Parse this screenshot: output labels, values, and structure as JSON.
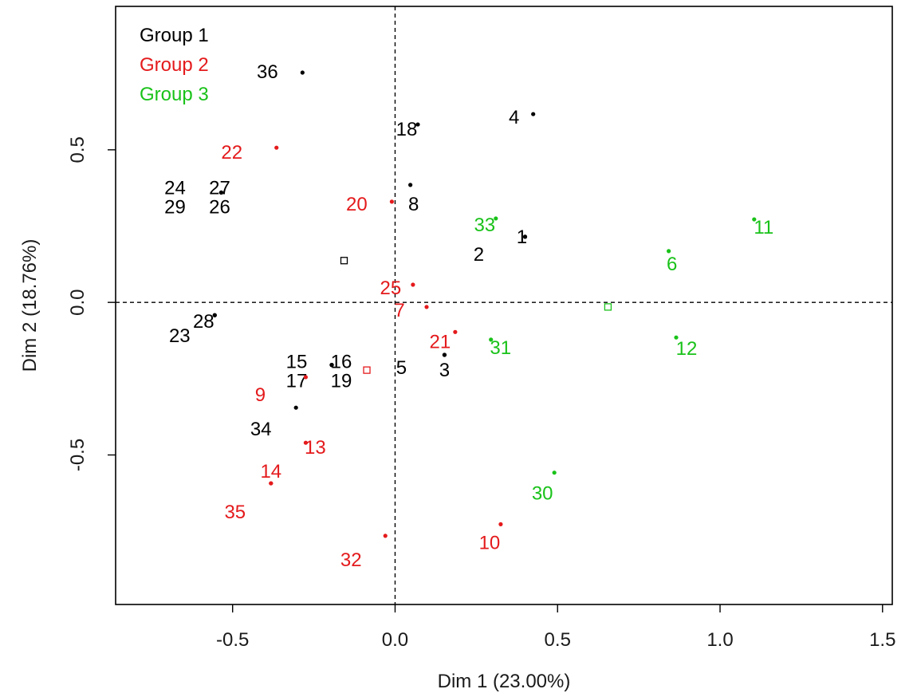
{
  "chart_data": {
    "type": "scatter",
    "xlabel": "Dim 1 (23.00%)",
    "ylabel": "Dim 2 (18.76%)",
    "xlim": [
      -0.86,
      1.53
    ],
    "ylim": [
      -0.99,
      0.97
    ],
    "xticks": [
      "-0.5",
      "0.0",
      "0.5",
      "1.0",
      "1.5"
    ],
    "yticks": [
      "-0.5",
      "0.0",
      "0.5"
    ],
    "grid": false,
    "reference_lines": {
      "x": 0.0,
      "y": 0.0,
      "style": "dashed"
    },
    "legend": {
      "placement": "top-left",
      "entries": [
        {
          "label": "Group 1",
          "color": "#000000"
        },
        {
          "label": "Group 2",
          "color": "#e41a1c"
        },
        {
          "label": "Group 3",
          "color": "#19c219"
        }
      ]
    },
    "series": [
      {
        "name": "Group 1",
        "color": "#000000",
        "centroid": [
          -0.157,
          0.137
        ],
        "points": [
          {
            "label": "36",
            "x": -0.285,
            "y": 0.753
          },
          {
            "label": "4",
            "x": 0.425,
            "y": 0.617
          },
          {
            "label": "18",
            "x": 0.07,
            "y": 0.583
          },
          {
            "label": "8",
            "x": 0.047,
            "y": 0.385
          },
          {
            "label": "24",
            "x": -0.535,
            "y": 0.36
          },
          {
            "label": "27",
            "x": -0.535,
            "y": 0.36
          },
          {
            "label": "29",
            "x": -0.535,
            "y": 0.36
          },
          {
            "label": "26",
            "x": -0.535,
            "y": 0.36
          },
          {
            "label": "1",
            "x": 0.4,
            "y": 0.215
          },
          {
            "label": "2",
            "x": 0.4,
            "y": 0.215
          },
          {
            "label": "28",
            "x": -0.555,
            "y": -0.042
          },
          {
            "label": "23",
            "x": -0.555,
            "y": -0.042
          },
          {
            "label": "3",
            "x": 0.152,
            "y": -0.172
          },
          {
            "label": "5",
            "x": 0.152,
            "y": -0.172
          },
          {
            "label": "15",
            "x": -0.195,
            "y": -0.205
          },
          {
            "label": "16",
            "x": -0.195,
            "y": -0.205
          },
          {
            "label": "17",
            "x": -0.195,
            "y": -0.205
          },
          {
            "label": "19",
            "x": -0.195,
            "y": -0.205
          },
          {
            "label": "34",
            "x": -0.305,
            "y": -0.345
          }
        ]
      },
      {
        "name": "Group 2",
        "color": "#e41a1c",
        "centroid": [
          -0.087,
          -0.222
        ],
        "points": [
          {
            "label": "22",
            "x": -0.365,
            "y": 0.507
          },
          {
            "label": "20",
            "x": -0.01,
            "y": 0.33
          },
          {
            "label": "25",
            "x": 0.055,
            "y": 0.058
          },
          {
            "label": "7",
            "x": 0.097,
            "y": -0.015
          },
          {
            "label": "21",
            "x": 0.185,
            "y": -0.097
          },
          {
            "label": "9",
            "x": -0.275,
            "y": -0.245
          },
          {
            "label": "13",
            "x": -0.275,
            "y": -0.46
          },
          {
            "label": "14",
            "x": -0.382,
            "y": -0.593
          },
          {
            "label": "35",
            "x": -0.382,
            "y": -0.593
          },
          {
            "label": "10",
            "x": 0.325,
            "y": -0.727
          },
          {
            "label": "32",
            "x": -0.03,
            "y": -0.765
          }
        ]
      },
      {
        "name": "Group 3",
        "color": "#19c219",
        "centroid": [
          0.655,
          -0.015
        ],
        "points": [
          {
            "label": "11",
            "x": 1.105,
            "y": 0.272
          },
          {
            "label": "33",
            "x": 0.31,
            "y": 0.275
          },
          {
            "label": "6",
            "x": 0.842,
            "y": 0.168
          },
          {
            "label": "31",
            "x": 0.295,
            "y": -0.122
          },
          {
            "label": "12",
            "x": 0.865,
            "y": -0.115
          },
          {
            "label": "30",
            "x": 0.49,
            "y": -0.558
          }
        ]
      }
    ]
  }
}
